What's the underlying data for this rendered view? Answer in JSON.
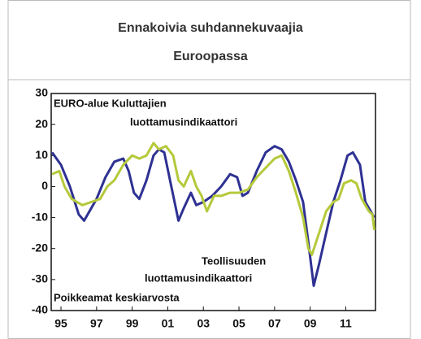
{
  "chart_data": {
    "type": "line",
    "title": [
      "Ennakoivia suhdannekuvaajia",
      "Euroopassa"
    ],
    "annotations": [
      "EURO-alue Kuluttajien",
      "luottamusindikaattori",
      "Teollisuuden",
      "luottamusindikaattori",
      "Poikkeamat keskiarvosta"
    ],
    "xlim": [
      1994.45,
      2012.67
    ],
    "ylim": [
      -40,
      30
    ],
    "yticks": [
      30,
      20,
      10,
      0,
      -10,
      -20,
      -30,
      -40
    ],
    "xticks": [
      {
        "value": 1995,
        "label": "95"
      },
      {
        "value": 1997,
        "label": "97"
      },
      {
        "value": 1999,
        "label": "99"
      },
      {
        "value": 2001,
        "label": "01"
      },
      {
        "value": 2003,
        "label": "03"
      },
      {
        "value": 2005,
        "label": "05"
      },
      {
        "value": 2007,
        "label": "07"
      },
      {
        "value": 2009,
        "label": "09"
      },
      {
        "value": 2011,
        "label": "11"
      }
    ],
    "series": [
      {
        "color": "#2e3192",
        "x": [
          1994.5,
          1995.0,
          1995.5,
          1996.0,
          1996.3,
          1996.6,
          1997.0,
          1997.5,
          1998.0,
          1998.5,
          1998.8,
          1999.1,
          1999.4,
          1999.8,
          2000.2,
          2000.5,
          2000.8,
          2001.2,
          2001.6,
          2001.9,
          2002.3,
          2002.6,
          2003.0,
          2003.5,
          2004.0,
          2004.5,
          2004.9,
          2005.2,
          2005.5,
          2006.0,
          2006.5,
          2007.0,
          2007.4,
          2007.8,
          2008.2,
          2008.6,
          2008.9,
          2009.2,
          2009.5,
          2009.9,
          2010.3,
          2010.7,
          2011.1,
          2011.4,
          2011.8,
          2012.1,
          2012.4,
          2012.6
        ],
        "values": [
          11,
          7,
          0,
          -9,
          -11,
          -8,
          -4,
          3,
          8,
          9,
          5,
          -2,
          -4,
          2,
          10,
          12,
          11,
          0,
          -11,
          -7,
          -2,
          -6,
          -5,
          -3,
          0,
          4,
          3,
          -3,
          -2,
          5,
          11,
          13,
          12,
          8,
          2,
          -5,
          -18,
          -32,
          -25,
          -15,
          -5,
          2,
          10,
          11,
          7,
          -5,
          -8,
          -10
        ]
      },
      {
        "color": "#b5c93a",
        "x": [
          1994.5,
          1994.9,
          1995.2,
          1995.6,
          1996.2,
          1996.7,
          1997.2,
          1997.6,
          1998.0,
          1998.5,
          1999.0,
          1999.4,
          1999.8,
          2000.2,
          2000.5,
          2000.9,
          2001.3,
          2001.6,
          2001.9,
          2002.3,
          2002.6,
          2002.9,
          2003.2,
          2003.6,
          2004.0,
          2004.5,
          2005.0,
          2005.5,
          2006.0,
          2006.5,
          2007.0,
          2007.4,
          2007.8,
          2008.2,
          2008.6,
          2008.9,
          2009.1,
          2009.5,
          2009.9,
          2010.3,
          2010.6,
          2010.9,
          2011.3,
          2011.6,
          2011.9,
          2012.3,
          2012.5,
          2012.6
        ],
        "values": [
          4,
          5,
          0,
          -4,
          -6,
          -5,
          -4,
          0,
          2,
          7,
          10,
          9,
          10,
          14,
          12,
          13,
          10,
          2,
          0,
          5,
          0,
          -3,
          -8,
          -3,
          -3,
          -2,
          -2,
          -1,
          3,
          6,
          9,
          10,
          5,
          -2,
          -10,
          -20,
          -22,
          -15,
          -8,
          -5,
          -4,
          1,
          2,
          1,
          -4,
          -8,
          -9,
          -14
        ]
      }
    ]
  }
}
